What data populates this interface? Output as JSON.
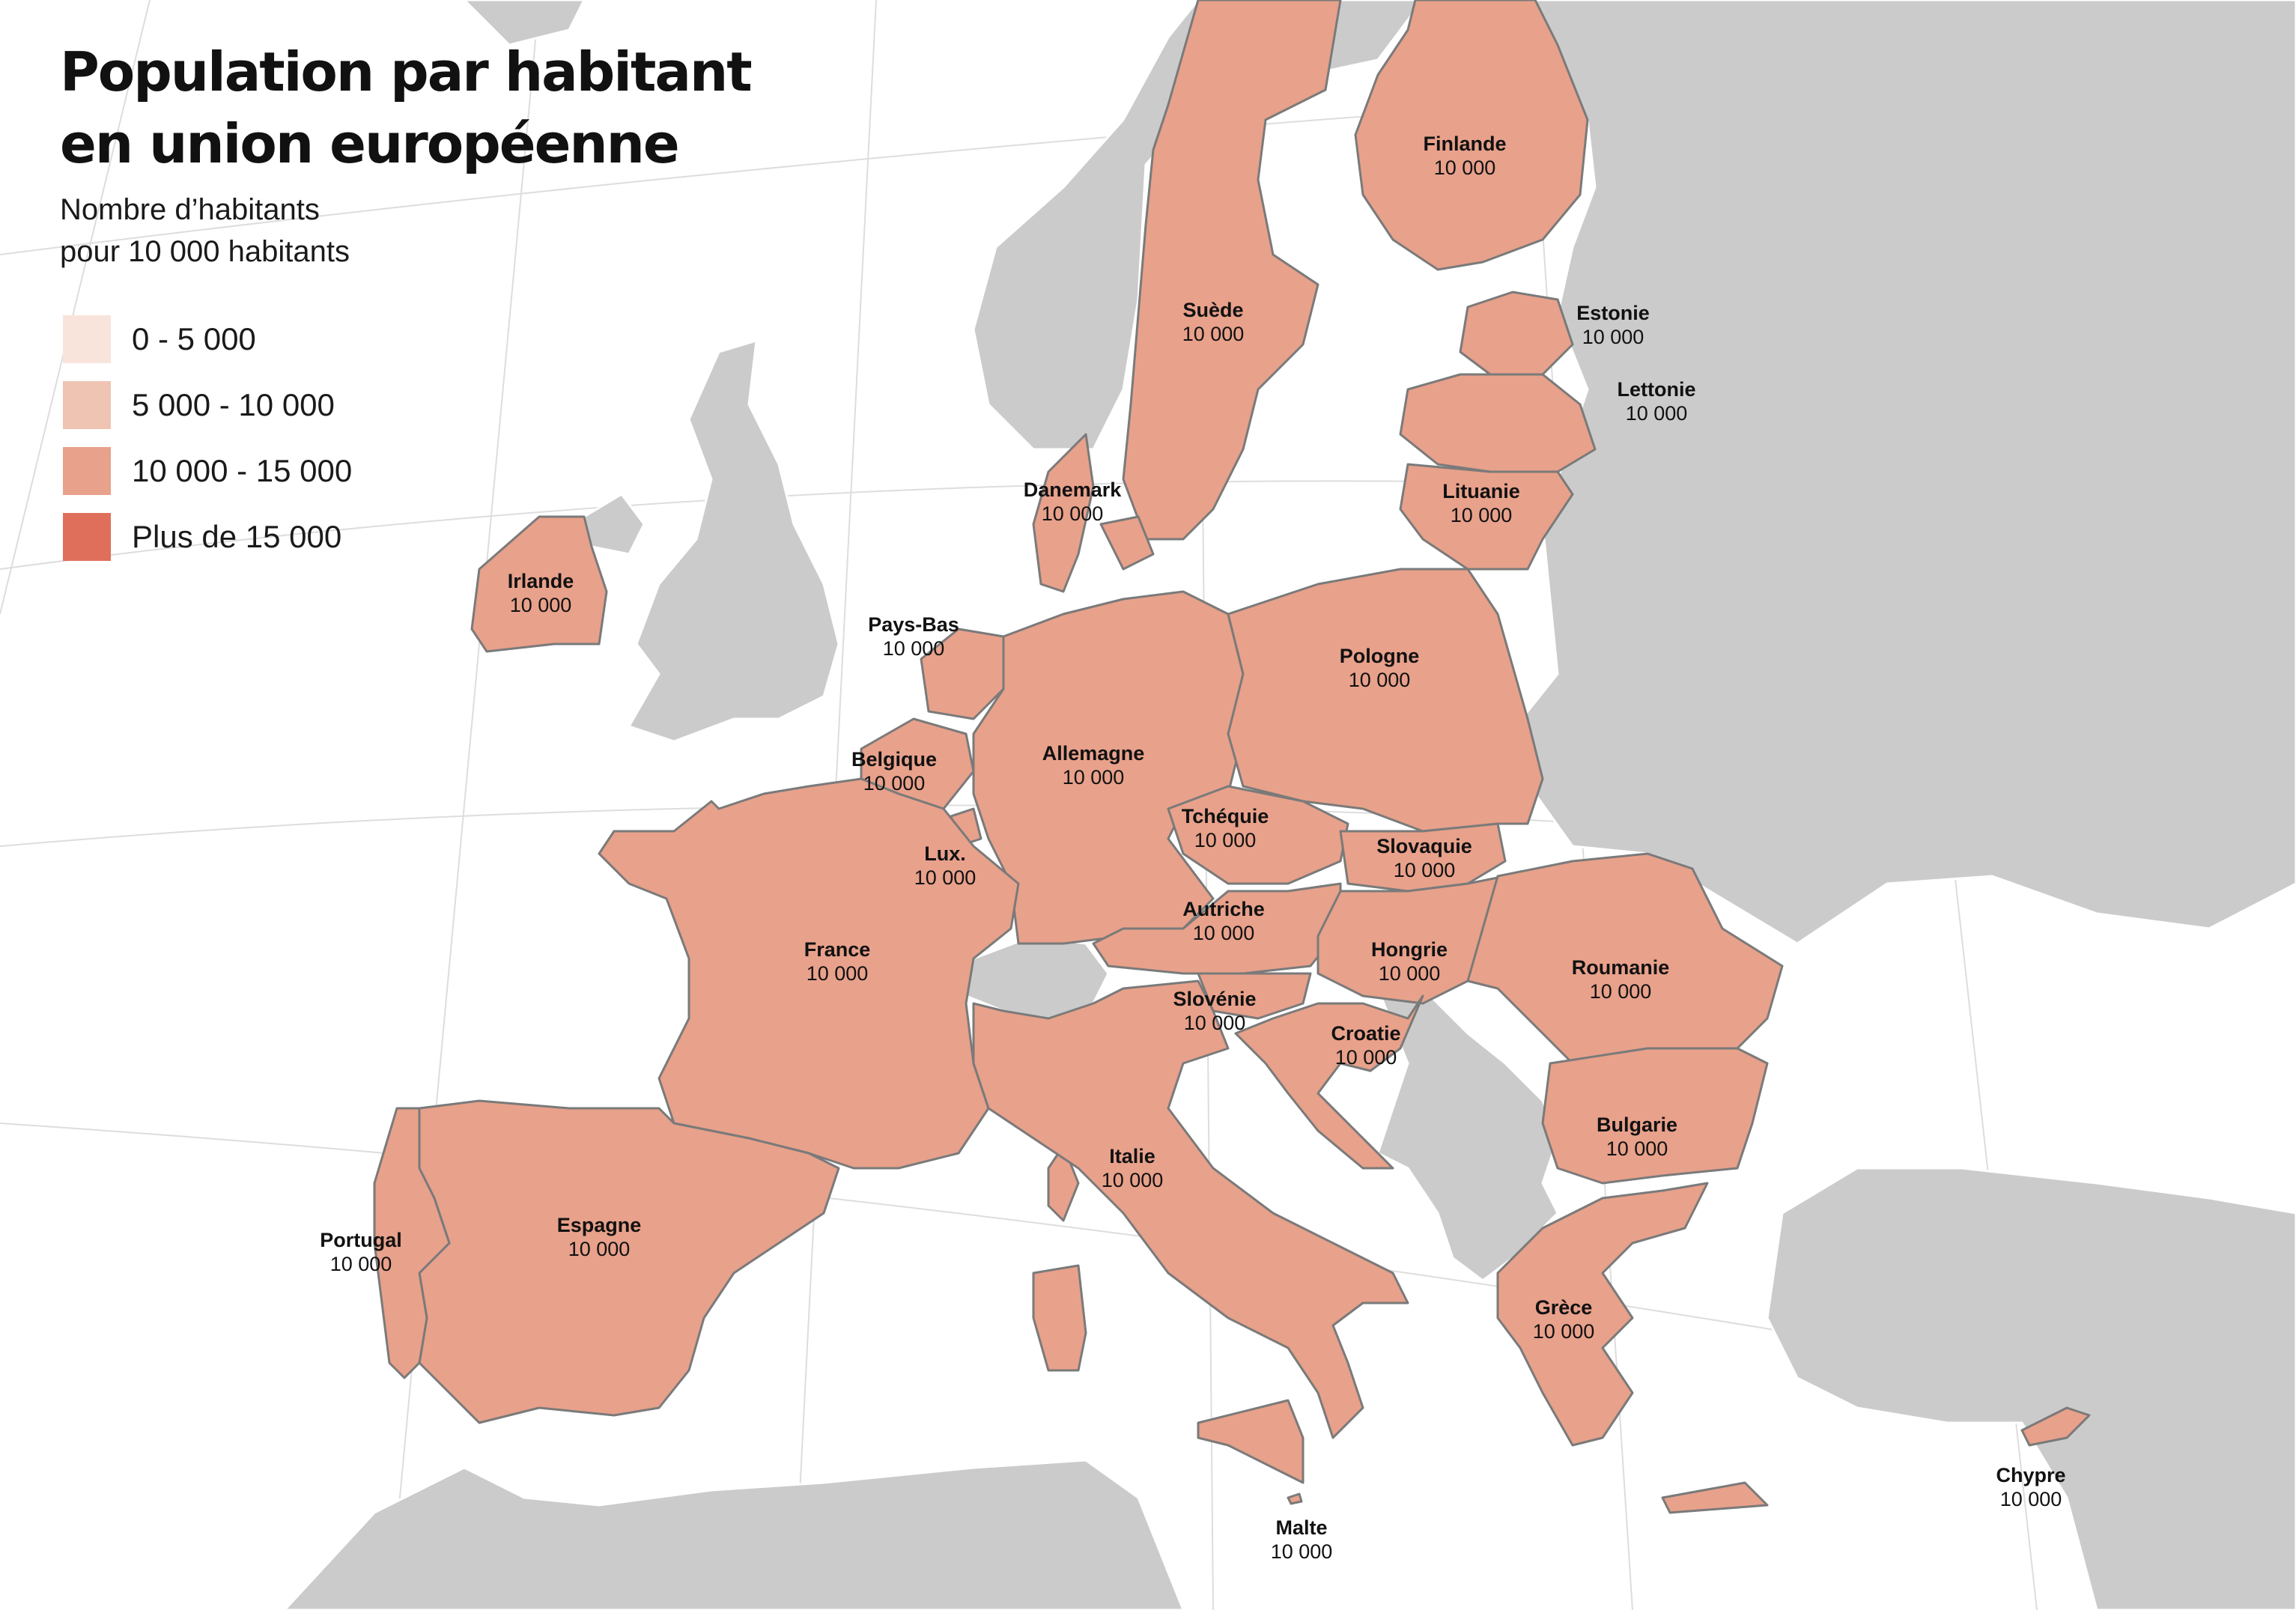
{
  "header": {
    "title_line1": "Population par habitant",
    "title_line2": "en union européenne",
    "subtitle_line1": "Nombre d’habitants",
    "subtitle_line2": "pour 10 000 habitants"
  },
  "legend": [
    {
      "label": "0 - 5 000",
      "color": "#f9e4dc"
    },
    {
      "label": "5 000 - 10 000",
      "color": "#efc4b3"
    },
    {
      "label": "10 000 - 15 000",
      "color": "#e8a18b"
    },
    {
      "label": "Plus de 15 000",
      "color": "#df6f5b"
    }
  ],
  "colors": {
    "eu_country": "#e8a18b",
    "non_eu_land": "#cbcbcb",
    "border": "#7a7a7a",
    "sea": "#ffffff",
    "graticule": "#dddddd"
  },
  "countries": [
    {
      "name": "Finlande",
      "value": "10 000"
    },
    {
      "name": "Suède",
      "value": "10 000"
    },
    {
      "name": "Estonie",
      "value": "10 000"
    },
    {
      "name": "Lettonie",
      "value": "10 000"
    },
    {
      "name": "Lituanie",
      "value": "10 000"
    },
    {
      "name": "Danemark",
      "value": "10 000"
    },
    {
      "name": "Irlande",
      "value": "10 000"
    },
    {
      "name": "Pays-Bas",
      "value": "10 000"
    },
    {
      "name": "Pologne",
      "value": "10 000"
    },
    {
      "name": "Allemagne",
      "value": "10 000"
    },
    {
      "name": "Belgique",
      "value": "10 000"
    },
    {
      "name": "Tchéquie",
      "value": "10 000"
    },
    {
      "name": "Slovaquie",
      "value": "10 000"
    },
    {
      "name": "Lux.",
      "value": "10 000"
    },
    {
      "name": "Autriche",
      "value": "10 000"
    },
    {
      "name": "France",
      "value": "10 000"
    },
    {
      "name": "Hongrie",
      "value": "10 000"
    },
    {
      "name": "Roumanie",
      "value": "10 000"
    },
    {
      "name": "Slovénie",
      "value": "10 000"
    },
    {
      "name": "Croatie",
      "value": "10 000"
    },
    {
      "name": "Italie",
      "value": "10 000"
    },
    {
      "name": "Bulgarie",
      "value": "10 000"
    },
    {
      "name": "Portugal",
      "value": "10 000"
    },
    {
      "name": "Espagne",
      "value": "10 000"
    },
    {
      "name": "Grèce",
      "value": "10 000"
    },
    {
      "name": "Chypre",
      "value": "10 000"
    },
    {
      "name": "Malte",
      "value": "10 000"
    }
  ]
}
